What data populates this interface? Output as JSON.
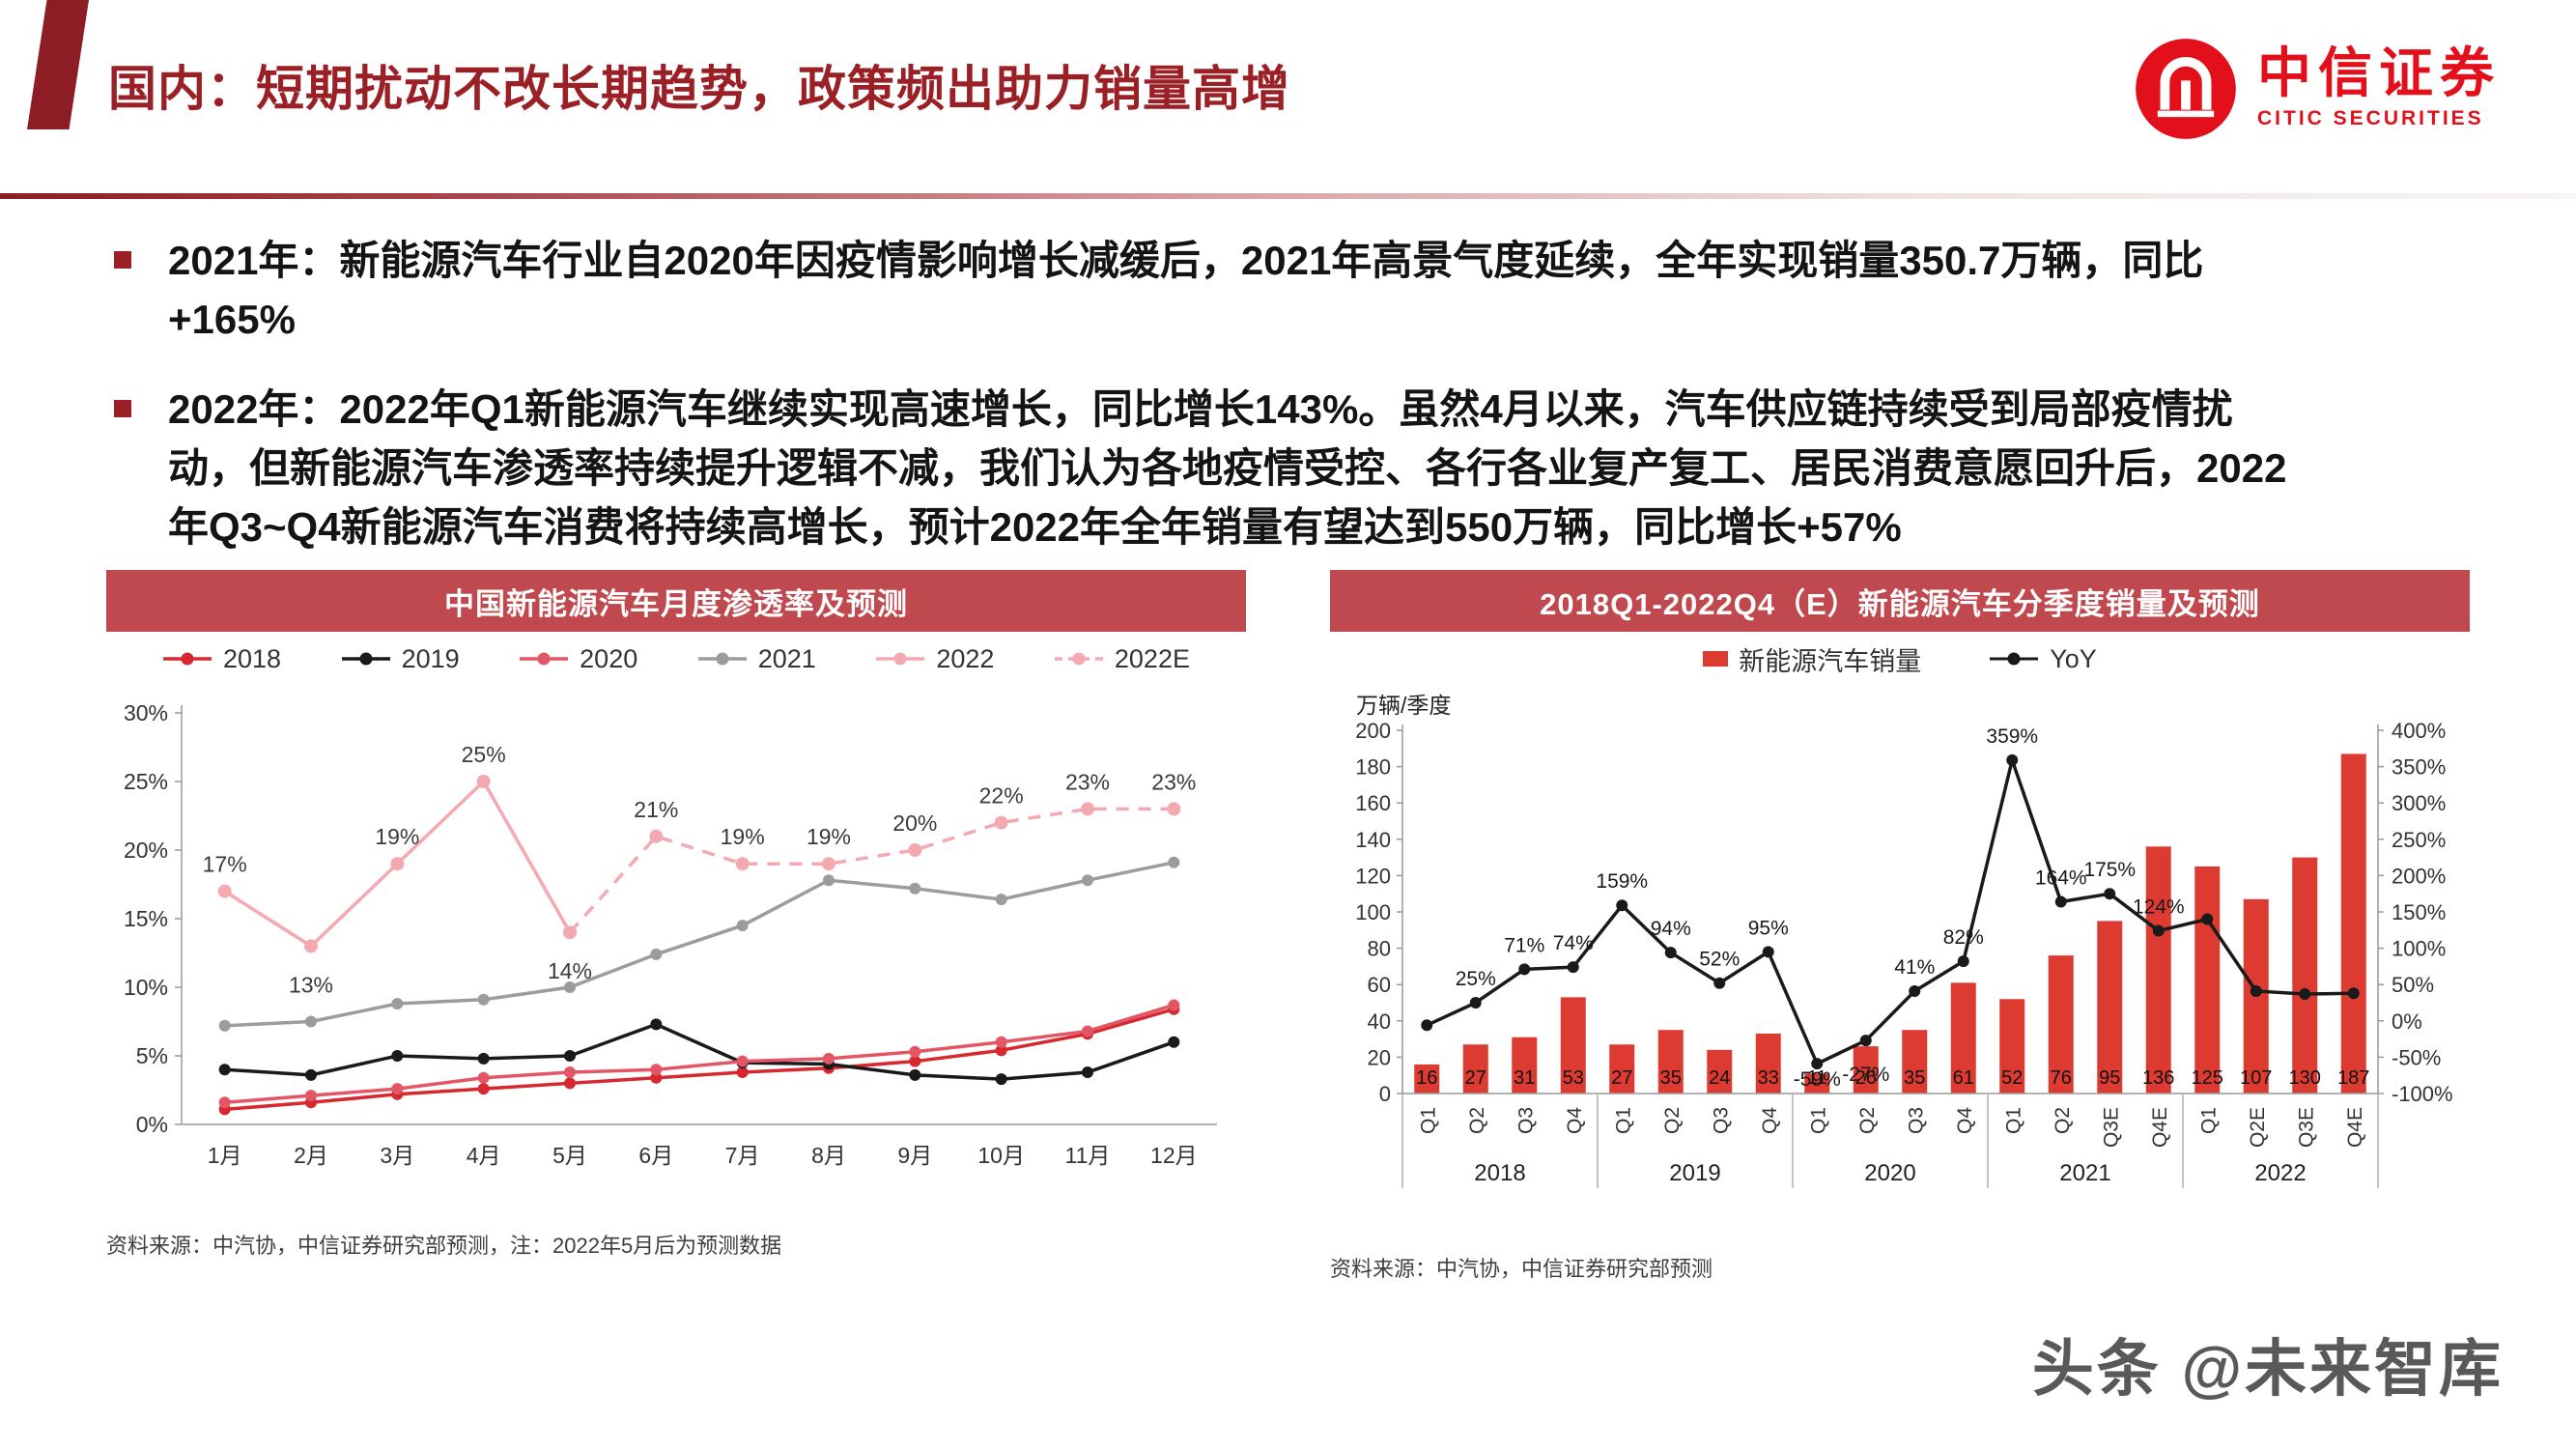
{
  "header": {
    "title": "国内：短期扰动不改长期趋势，政策频出助力销量高增",
    "logo_cn": "中信证券",
    "logo_en": "CITIC SECURITIES"
  },
  "bullets": [
    "2021年：新能源汽车行业自2020年因疫情影响增长减缓后，2021年高景气度延续，全年实现销量350.7万辆，同比+165%",
    "2022年：2022年Q1新能源汽车继续实现高速增长，同比增长143%。虽然4月以来，汽车供应链持续受到局部疫情扰动，但新能源汽车渗透率持续提升逻辑不减，我们认为各地疫情受控、各行各业复产复工、居民消费意愿回升后，2022年Q3~Q4新能源汽车消费将持续高增长，预计2022年全年销量有望达到550万辆，同比增长+57%"
  ],
  "watermark": "头条 @未来智库",
  "colors": {
    "accent_red": "#9a2025",
    "banner_red": "#c0494f",
    "bar_red": "#dd3b31",
    "logo_red": "#e3101b"
  },
  "chart_data": [
    {
      "type": "line",
      "title": "中国新能源汽车月度渗透率及预测",
      "source": "资料来源：中汽协，中信证券研究部预测，注：2022年5月后为预测数据",
      "x_categories": [
        "1月",
        "2月",
        "3月",
        "4月",
        "5月",
        "6月",
        "7月",
        "8月",
        "9月",
        "10月",
        "11月",
        "12月"
      ],
      "ylim": [
        0,
        30
      ],
      "ytick_step": 5,
      "ytick_suffix": "%",
      "grid": false,
      "legend_position": "top",
      "series": [
        {
          "name": "2018",
          "color": "#d7282f",
          "dashed": false,
          "values": [
            1.1,
            1.6,
            2.2,
            2.6,
            3.0,
            3.4,
            3.8,
            4.1,
            4.6,
            5.4,
            6.6,
            8.4
          ]
        },
        {
          "name": "2019",
          "color": "#1a1a1a",
          "dashed": false,
          "values": [
            4.0,
            3.6,
            5.0,
            4.8,
            5.0,
            7.3,
            4.5,
            4.4,
            3.6,
            3.3,
            3.8,
            6.0
          ]
        },
        {
          "name": "2020",
          "color": "#e25666",
          "dashed": false,
          "values": [
            1.6,
            2.1,
            2.6,
            3.4,
            3.8,
            4.0,
            4.6,
            4.8,
            5.3,
            6.0,
            6.8,
            8.7
          ]
        },
        {
          "name": "2021",
          "color": "#9c9c9c",
          "dashed": false,
          "values": [
            7.2,
            7.5,
            8.8,
            9.1,
            10.0,
            12.4,
            14.5,
            17.8,
            17.2,
            16.4,
            17.8,
            19.1
          ]
        },
        {
          "name": "2022",
          "color": "#f4a9b0",
          "dashed": false,
          "values": [
            17,
            13,
            19,
            25,
            14,
            null,
            null,
            null,
            null,
            null,
            null,
            null
          ]
        },
        {
          "name": "2022E",
          "color": "#f4a9b0",
          "dashed": true,
          "values": [
            null,
            null,
            null,
            null,
            14,
            21,
            19,
            19,
            20,
            22,
            23,
            23
          ]
        }
      ],
      "point_labels": [
        "17%",
        "13%",
        "19%",
        "25%",
        "14%",
        "21%",
        "19%",
        "19%",
        "20%",
        "22%",
        "23%",
        "23%"
      ]
    },
    {
      "type": "bar+line",
      "title": "2018Q1-2022Q4（E）新能源汽车分季度销量及预测",
      "source": "资料来源：中汽协，中信证券研究部预测",
      "y_left_title": "万辆/季度",
      "categories": [
        "Q1",
        "Q2",
        "Q3",
        "Q4",
        "Q1",
        "Q2",
        "Q3",
        "Q4",
        "Q1",
        "Q2",
        "Q3",
        "Q4",
        "Q1",
        "Q2",
        "Q3E",
        "Q4E",
        "Q1",
        "Q2E",
        "Q3E",
        "Q4E"
      ],
      "year_groups": [
        "2018",
        "2019",
        "2020",
        "2021",
        "2022"
      ],
      "ylim_left": [
        0,
        200
      ],
      "ytick_left_step": 20,
      "ylim_right": [
        -100,
        400
      ],
      "ytick_right_step": 50,
      "bar_series": {
        "name": "新能源汽车销量",
        "color": "#dd3b31",
        "values": [
          16,
          27,
          31,
          53,
          27,
          35,
          24,
          33,
          11,
          26,
          35,
          61,
          52,
          76,
          95,
          136,
          125,
          107,
          130,
          187
        ]
      },
      "line_series": {
        "name": "YoY",
        "color": "#1a1a1a",
        "values": [
          -6,
          25,
          71,
          74,
          159,
          94,
          52,
          95,
          -59,
          -27,
          41,
          82,
          359,
          164,
          175,
          124,
          140,
          41,
          37,
          38
        ],
        "labels": [
          "",
          "25%",
          "71%",
          "74%",
          "159%",
          "94%",
          "52%",
          "95%",
          "-59%",
          "-27%",
          "41%",
          "82%",
          "359%",
          "164%",
          "175%",
          "124%",
          "",
          "",
          "",
          ""
        ]
      }
    }
  ]
}
